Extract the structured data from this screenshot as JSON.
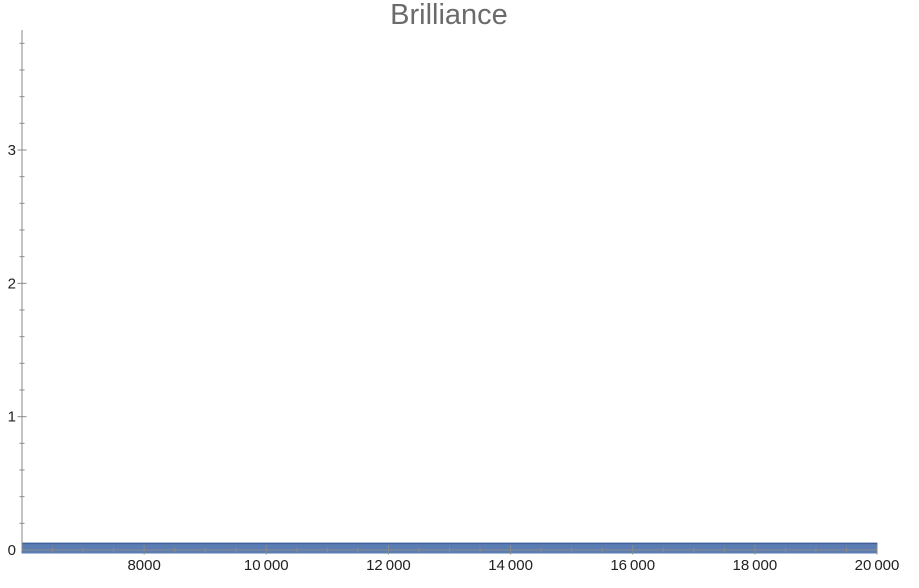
{
  "chart_data": {
    "type": "area",
    "title": "Brilliance",
    "xlabel": "",
    "ylabel": "",
    "xlim": [
      6000,
      20000
    ],
    "ylim": [
      0,
      3.9
    ],
    "x_ticks": [
      8000,
      10000,
      12000,
      14000,
      16000,
      18000,
      20000
    ],
    "x_tick_labels": [
      "8000",
      "10 000",
      "12 000",
      "14 000",
      "16 000",
      "18 000",
      "20 000"
    ],
    "y_ticks": [
      0,
      1,
      2,
      3
    ],
    "y_tick_labels": [
      "0",
      "1",
      "2",
      "3"
    ],
    "series": [
      {
        "x": [
          6000,
          20000
        ],
        "y": [
          0.05,
          0.05
        ],
        "fill_to": 0
      }
    ],
    "fill_color": "#5b7db3",
    "grid": false
  }
}
